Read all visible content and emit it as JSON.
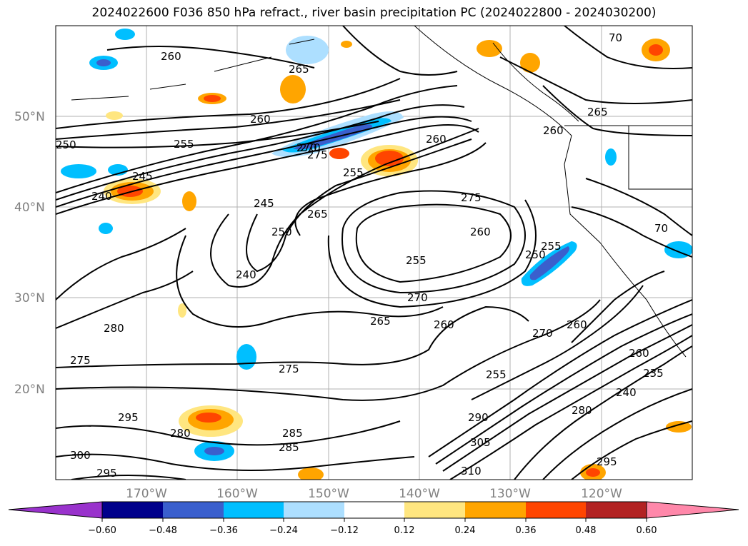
{
  "title": "2024022600 F036 850 hPa refract., river basin precipitation PC (2024022800 - 2024030200)",
  "map": {
    "lat_labels": [
      "50°N",
      "40°N",
      "30°N",
      "20°N"
    ],
    "lon_labels": [
      "170°W",
      "160°W",
      "150°W",
      "140°W",
      "130°W",
      "120°W"
    ],
    "contour_labels": [
      "260",
      "265",
      "270",
      "260",
      "265",
      "260",
      "250",
      "255",
      "270",
      "275",
      "255",
      "260",
      "240",
      "245",
      "245",
      "250",
      "265",
      "275",
      "260",
      "255",
      "250",
      "255",
      "240",
      "270",
      "265",
      "260",
      "280",
      "275",
      "270",
      "260",
      "275",
      "255",
      "240",
      "285",
      "295",
      "280",
      "285",
      "300",
      "295",
      "305",
      "310",
      "280",
      "260",
      "235",
      "295",
      "290",
      "70",
      "70"
    ]
  },
  "colorbar": {
    "ticks": [
      "−0.60",
      "−0.48",
      "−0.36",
      "−0.24",
      "−0.12",
      "0.12",
      "0.24",
      "0.36",
      "0.48",
      "0.60"
    ],
    "colors": [
      "#9932CC",
      "#00008B",
      "#3A5FCD",
      "#00BFFF",
      "#ADDFFF",
      "#FFFFFF",
      "#FFE680",
      "#FFA500",
      "#FF4500",
      "#B22222",
      "#FF88AA"
    ]
  }
}
